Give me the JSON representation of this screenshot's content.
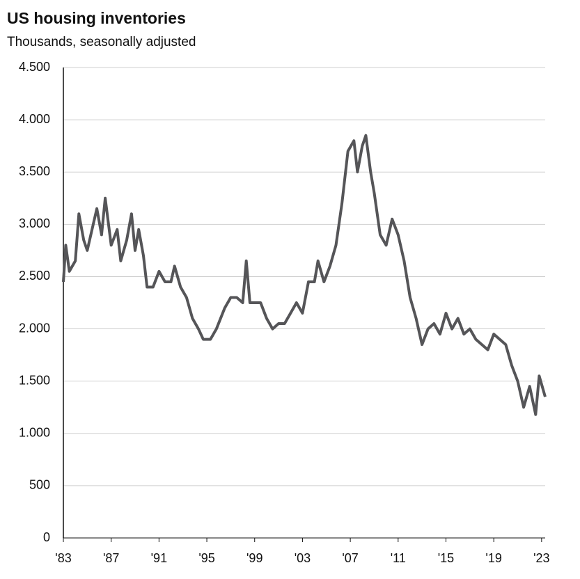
{
  "chart_data": {
    "type": "line",
    "title": "US housing inventories",
    "subtitle": "Thousands, seasonally adjusted",
    "x": [
      1983.0,
      1983.2,
      1983.5,
      1984.0,
      1984.3,
      1984.7,
      1985.0,
      1985.5,
      1985.8,
      1986.2,
      1986.5,
      1987.0,
      1987.5,
      1987.8,
      1988.3,
      1988.7,
      1989.0,
      1989.3,
      1989.7,
      1990.0,
      1990.5,
      1991.0,
      1991.5,
      1992.0,
      1992.3,
      1992.8,
      1993.3,
      1993.8,
      1994.3,
      1994.7,
      1995.3,
      1995.8,
      1996.5,
      1997.0,
      1997.5,
      1998.0,
      1998.3,
      1998.6,
      1999.0,
      1999.5,
      2000.0,
      2000.5,
      2001.0,
      2001.5,
      2002.0,
      2002.5,
      2003.0,
      2003.5,
      2004.0,
      2004.3,
      2004.8,
      2005.3,
      2005.8,
      2006.3,
      2006.8,
      2007.3,
      2007.6,
      2008.0,
      2008.3,
      2008.7,
      2009.0,
      2009.5,
      2010.0,
      2010.5,
      2011.0,
      2011.5,
      2012.0,
      2012.5,
      2013.0,
      2013.5,
      2014.0,
      2014.5,
      2015.0,
      2015.5,
      2016.0,
      2016.5,
      2017.0,
      2017.5,
      2018.0,
      2018.5,
      2019.0,
      2019.5,
      2020.0,
      2020.5,
      2021.0,
      2021.5,
      2022.0,
      2022.5,
      2022.8,
      2023.3
    ],
    "series": [
      {
        "name": "US housing inventories",
        "color": "#555558",
        "values": [
          2450,
          2800,
          2550,
          2650,
          3100,
          2850,
          2750,
          3000,
          3150,
          2900,
          3250,
          2800,
          2950,
          2650,
          2850,
          3100,
          2750,
          2950,
          2700,
          2400,
          2400,
          2550,
          2450,
          2450,
          2600,
          2400,
          2300,
          2100,
          2000,
          1900,
          1900,
          2000,
          2200,
          2300,
          2300,
          2250,
          2650,
          2250,
          2250,
          2250,
          2100,
          2000,
          2050,
          2050,
          2150,
          2250,
          2150,
          2450,
          2450,
          2650,
          2450,
          2600,
          2800,
          3200,
          3700,
          3800,
          3500,
          3750,
          3850,
          3500,
          3300,
          2900,
          2800,
          3050,
          2900,
          2650,
          2300,
          2100,
          1850,
          2000,
          2050,
          1950,
          2150,
          2000,
          2100,
          1950,
          2000,
          1900,
          1850,
          1800,
          1950,
          1900,
          1850,
          1650,
          1500,
          1250,
          1450,
          1180,
          1550,
          1350
        ]
      }
    ],
    "xlim": [
      1983,
      2023.3
    ],
    "xticks": [
      {
        "value": 1983,
        "label": "'83"
      },
      {
        "value": 1987,
        "label": "'87"
      },
      {
        "value": 1991,
        "label": "'91"
      },
      {
        "value": 1995,
        "label": "'95"
      },
      {
        "value": 1999,
        "label": "'99"
      },
      {
        "value": 2003,
        "label": "'03"
      },
      {
        "value": 2007,
        "label": "'07"
      },
      {
        "value": 2011,
        "label": "'11"
      },
      {
        "value": 2015,
        "label": "'15"
      },
      {
        "value": 2019,
        "label": "'19"
      },
      {
        "value": 2023,
        "label": "'23"
      }
    ],
    "ylim": [
      0,
      4500
    ],
    "yticks": [
      0,
      500,
      {
        "value": 1000,
        "label": "1.000"
      },
      {
        "value": 1500,
        "label": "1.500"
      },
      {
        "value": 2000,
        "label": "2.000"
      },
      {
        "value": 2500,
        "label": "2.500"
      },
      {
        "value": 3000,
        "label": "3.000"
      },
      {
        "value": 3500,
        "label": "3.500"
      },
      {
        "value": 4000,
        "label": "4.000"
      },
      {
        "value": 4500,
        "label": "4.500"
      }
    ],
    "grid": true
  }
}
